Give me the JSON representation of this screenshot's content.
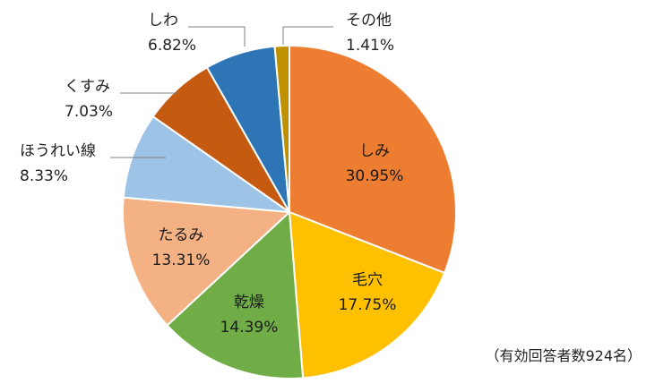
{
  "chart_data": {
    "type": "pie",
    "title": "",
    "note": "（有効回答者数924名）",
    "slices": [
      {
        "name": "しみ",
        "value": 30.95,
        "value_label": "30.95%",
        "color": "#ED7D31",
        "label_position": "inside"
      },
      {
        "name": "毛穴",
        "value": 17.75,
        "value_label": "17.75%",
        "color": "#FFC000",
        "label_position": "inside"
      },
      {
        "name": "乾燥",
        "value": 14.39,
        "value_label": "14.39%",
        "color": "#70AD47",
        "label_position": "inside"
      },
      {
        "name": "たるみ",
        "value": 13.31,
        "value_label": "13.31%",
        "color": "#F4B183",
        "label_position": "inside"
      },
      {
        "name": "ほうれい線",
        "value": 8.33,
        "value_label": "8.33%",
        "color": "#9DC3E6",
        "label_position": "outside"
      },
      {
        "name": "くすみ",
        "value": 7.03,
        "value_label": "7.03%",
        "color": "#C55A11",
        "label_position": "outside"
      },
      {
        "name": "しわ",
        "value": 6.82,
        "value_label": "6.82%",
        "color": "#2E75B6",
        "label_position": "outside"
      },
      {
        "name": "その他",
        "value": 1.41,
        "value_label": "1.41%",
        "color": "#BF9000",
        "label_position": "outside"
      }
    ],
    "start_angle_deg": 0,
    "direction": "clockwise",
    "slice_border_color": "#FFFFFF"
  }
}
